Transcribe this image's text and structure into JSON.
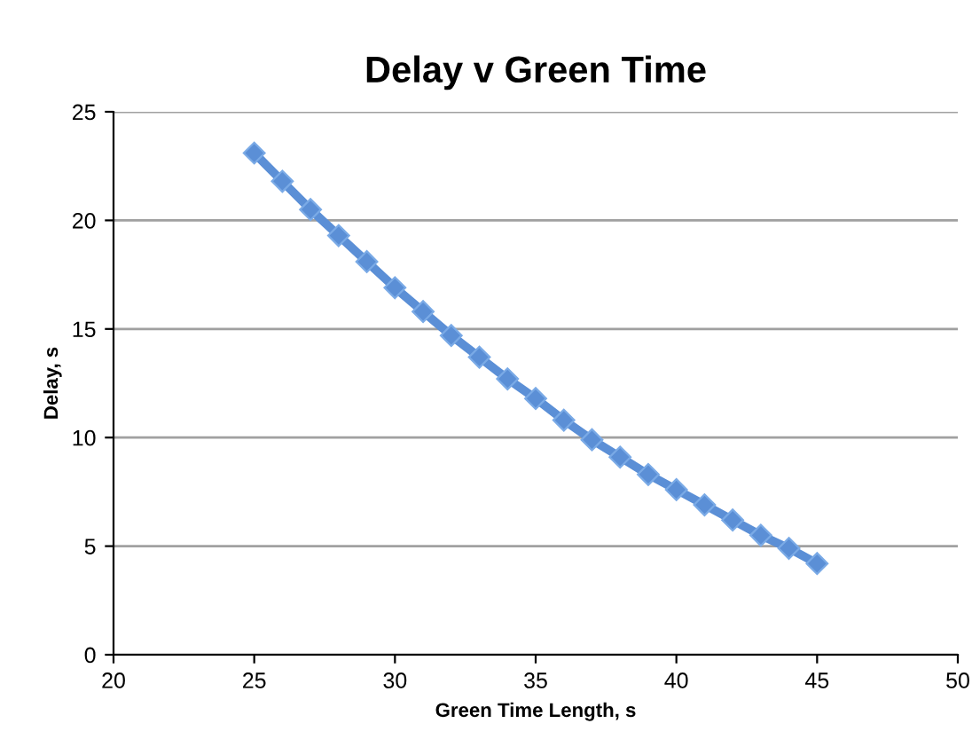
{
  "chart_data": {
    "type": "line",
    "title": "Delay v Green Time",
    "xlabel": "Green Time Length, s",
    "ylabel": "Delay, s",
    "x": [
      25,
      26,
      27,
      28,
      29,
      30,
      31,
      32,
      33,
      34,
      35,
      36,
      37,
      38,
      39,
      40,
      41,
      42,
      43,
      44,
      45
    ],
    "series": [
      {
        "color": "#5b8fd6",
        "values": [
          23.1,
          21.8,
          20.5,
          19.3,
          18.1,
          16.9,
          15.8,
          14.7,
          13.7,
          12.7,
          11.8,
          10.8,
          9.9,
          9.1,
          8.3,
          7.6,
          6.9,
          6.2,
          5.5,
          4.9,
          4.2
        ]
      }
    ],
    "xlim": [
      20,
      50
    ],
    "xticks": [
      20,
      25,
      30,
      35,
      40,
      45,
      50
    ],
    "ylim": [
      0,
      25
    ],
    "yticks": [
      0,
      5,
      10,
      15,
      20,
      25
    ],
    "grid": "y",
    "marker": "diamond",
    "line_style": "solid"
  }
}
